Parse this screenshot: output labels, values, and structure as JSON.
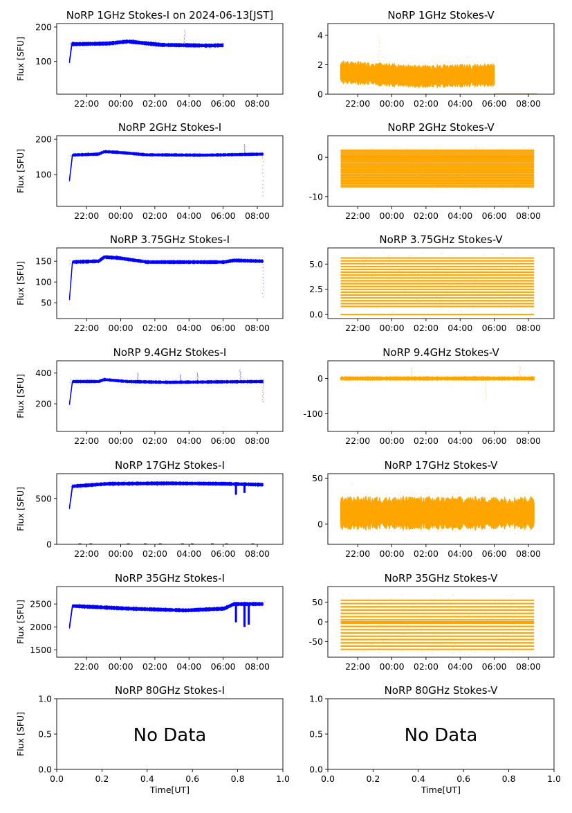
{
  "colors": {
    "stokes_i": "#0000ff",
    "stokes_v": "#ffa500",
    "axis": "#000000"
  },
  "chart_data": [
    {
      "type": "scatter",
      "title": "NoRP 1GHz Stokes-I on 2024-06-13[JST]",
      "ylabel": "Flux [SFU]",
      "xlim": [
        "20:15",
        "09:30"
      ],
      "ylim": [
        5,
        210
      ],
      "yticks": [
        100,
        200
      ],
      "series": [
        {
          "color": "stokes_i",
          "x_range": [
            "21:00",
            "06:00"
          ],
          "start": 100,
          "ramp_to": 150,
          "level_points": [
            [
              0,
              150
            ],
            [
              0.25,
              152
            ],
            [
              0.38,
              158
            ],
            [
              0.6,
              148
            ],
            [
              0.9,
              146
            ],
            [
              1,
              147
            ]
          ],
          "noise": 4,
          "spikes": [
            {
              "x": "03:45",
              "y": 190
            }
          ]
        }
      ]
    },
    {
      "type": "scatter",
      "title": "NoRP 1GHz Stokes-V",
      "ylabel": "",
      "xlim": [
        "20:15",
        "09:30"
      ],
      "ylim": [
        0,
        4.8
      ],
      "yticks": [
        0,
        2,
        4
      ],
      "series": [
        {
          "color": "stokes_v",
          "x_range": [
            "21:00",
            "06:00"
          ],
          "start": 1.5,
          "ramp_to": 1.5,
          "level_points": [
            [
              0,
              1.5
            ],
            [
              0.5,
              1.2
            ],
            [
              1,
              1.3
            ]
          ],
          "noise": 0.6,
          "extra_segment": {
            "x_range": [
              "06:00",
              "08:30"
            ],
            "y": 0.02
          },
          "spikes": [
            {
              "x": "23:15",
              "y": 3.9
            }
          ]
        }
      ]
    },
    {
      "type": "scatter",
      "title": "NoRP 2GHz Stokes-I",
      "ylabel": "Flux [SFU]",
      "xlim": [
        "20:15",
        "09:30"
      ],
      "ylim": [
        10,
        210
      ],
      "yticks": [
        100,
        200
      ],
      "series": [
        {
          "color": "stokes_i",
          "x_range": [
            "21:00",
            "08:20"
          ],
          "start": 85,
          "ramp_to": 155,
          "level_points": [
            [
              0,
              155
            ],
            [
              0.15,
              158
            ],
            [
              0.18,
              165
            ],
            [
              0.25,
              163
            ],
            [
              0.4,
              156
            ],
            [
              0.7,
              155
            ],
            [
              1,
              158
            ]
          ],
          "noise": 3,
          "spikes": [
            {
              "x": "07:15",
              "y": 185
            },
            {
              "x": "08:20",
              "y": 40
            }
          ]
        }
      ]
    },
    {
      "type": "scatter",
      "title": "NoRP 2GHz Stokes-V",
      "ylabel": "",
      "xlim": [
        "20:15",
        "09:30"
      ],
      "ylim": [
        -12.5,
        5.5
      ],
      "yticks": [
        0,
        -10
      ],
      "series": [
        {
          "color": "stokes_v",
          "x_range": [
            "21:00",
            "08:20"
          ],
          "bands": [
            1.8,
            -7.5
          ],
          "band_count": 24,
          "noise": 0.3
        }
      ]
    },
    {
      "type": "scatter",
      "title": "NoRP 3.75GHz Stokes-I",
      "ylabel": "Flux [SFU]",
      "xlim": [
        "20:15",
        "09:30"
      ],
      "ylim": [
        12,
        182
      ],
      "yticks": [
        50,
        100,
        150
      ],
      "series": [
        {
          "color": "stokes_i",
          "x_range": [
            "21:00",
            "08:20"
          ],
          "start": 60,
          "ramp_to": 148,
          "level_points": [
            [
              0,
              148
            ],
            [
              0.15,
              150
            ],
            [
              0.18,
              160
            ],
            [
              0.25,
              158
            ],
            [
              0.4,
              148
            ],
            [
              0.8,
              148
            ],
            [
              0.85,
              152
            ],
            [
              1,
              150
            ]
          ],
          "noise": 3,
          "spikes": [
            {
              "x": "08:20",
              "y": 65
            }
          ]
        }
      ]
    },
    {
      "type": "scatter",
      "title": "NoRP 3.75GHz Stokes-V",
      "ylabel": "",
      "xlim": [
        "20:15",
        "09:30"
      ],
      "ylim": [
        -0.4,
        6.6
      ],
      "yticks": [
        0.0,
        2.5,
        5.0
      ],
      "series": [
        {
          "color": "stokes_v",
          "x_range": [
            "21:00",
            "08:20"
          ],
          "bands": [
            5.6,
            0.8
          ],
          "band_count": 18,
          "noise": 0.1
        }
      ]
    },
    {
      "type": "scatter",
      "title": "NoRP 9.4GHz Stokes-I",
      "ylabel": "Flux [SFU]",
      "xlim": [
        "20:15",
        "09:30"
      ],
      "ylim": [
        20,
        480
      ],
      "yticks": [
        200,
        400
      ],
      "series": [
        {
          "color": "stokes_i",
          "x_range": [
            "21:00",
            "08:20"
          ],
          "start": 200,
          "ramp_to": 345,
          "level_points": [
            [
              0,
              345
            ],
            [
              0.15,
              345
            ],
            [
              0.18,
              358
            ],
            [
              0.3,
              345
            ],
            [
              0.5,
              340
            ],
            [
              1,
              345
            ]
          ],
          "noise": 7,
          "spikes": [
            {
              "x": "01:00",
              "y": 400
            },
            {
              "x": "03:30",
              "y": 390
            },
            {
              "x": "04:30",
              "y": 400
            },
            {
              "x": "07:00",
              "y": 420
            },
            {
              "x": "08:20",
              "y": 215
            }
          ]
        }
      ]
    },
    {
      "type": "scatter",
      "title": "NoRP 9.4GHz Stokes-V",
      "ylabel": "",
      "xlim": [
        "20:15",
        "09:30"
      ],
      "ylim": [
        -150,
        50
      ],
      "yticks": [
        0,
        -100
      ],
      "series": [
        {
          "color": "stokes_v",
          "x_range": [
            "21:00",
            "08:20"
          ],
          "start": 0,
          "ramp_to": 0,
          "level_points": [
            [
              0,
              0
            ],
            [
              1,
              0
            ]
          ],
          "noise": 4,
          "spikes": [
            {
              "x": "01:10",
              "y": 30
            },
            {
              "x": "05:30",
              "y": -60
            },
            {
              "x": "07:30",
              "y": 35
            }
          ]
        }
      ]
    },
    {
      "type": "scatter",
      "title": "NoRP 17GHz Stokes-I",
      "ylabel": "Flux [SFU]",
      "xlim": [
        "20:15",
        "09:30"
      ],
      "ylim": [
        0,
        770
      ],
      "yticks": [
        0,
        500
      ],
      "series": [
        {
          "color": "stokes_i",
          "x_range": [
            "21:00",
            "08:20"
          ],
          "start": 400,
          "ramp_to": 630,
          "level_points": [
            [
              0,
              630
            ],
            [
              0.2,
              660
            ],
            [
              0.5,
              665
            ],
            [
              0.8,
              660
            ],
            [
              1,
              650
            ]
          ],
          "noise": 14,
          "dips": [
            {
              "x": "06:45",
              "y": 540
            },
            {
              "x": "07:15",
              "y": 560
            }
          ],
          "baseline_y": 2
        }
      ]
    },
    {
      "type": "scatter",
      "title": "NoRP 17GHz Stokes-V",
      "ylabel": "",
      "xlim": [
        "20:15",
        "09:30"
      ],
      "ylim": [
        -22,
        55
      ],
      "yticks": [
        0,
        50
      ],
      "series": [
        {
          "color": "stokes_v",
          "x_range": [
            "21:00",
            "08:20"
          ],
          "start": 12,
          "ramp_to": 12,
          "level_points": [
            [
              0,
              12
            ],
            [
              1,
              12
            ]
          ],
          "noise": 14
        }
      ]
    },
    {
      "type": "scatter",
      "title": "NoRP 35GHz Stokes-I",
      "ylabel": "Flux [SFU]",
      "xlim": [
        "20:15",
        "09:30"
      ],
      "ylim": [
        1340,
        2880
      ],
      "yticks": [
        1500,
        2000,
        2500
      ],
      "series": [
        {
          "color": "stokes_i",
          "x_range": [
            "21:00",
            "08:20"
          ],
          "start": 2000,
          "ramp_to": 2450,
          "level_points": [
            [
              0,
              2460
            ],
            [
              0.3,
              2400
            ],
            [
              0.6,
              2360
            ],
            [
              0.8,
              2400
            ],
            [
              0.85,
              2500
            ],
            [
              1,
              2500
            ]
          ],
          "noise": 30,
          "dips": [
            {
              "x": "06:45",
              "y": 2100
            },
            {
              "x": "07:15",
              "y": 2000
            },
            {
              "x": "07:30",
              "y": 2050
            }
          ]
        }
      ]
    },
    {
      "type": "scatter",
      "title": "NoRP 35GHz Stokes-V",
      "ylabel": "",
      "xlim": [
        "20:15",
        "09:30"
      ],
      "ylim": [
        -90,
        90
      ],
      "yticks": [
        -50,
        0,
        50
      ],
      "series": [
        {
          "color": "stokes_v",
          "x_range": [
            "21:00",
            "08:20"
          ],
          "bands": [
            55,
            -70
          ],
          "band_count": 16,
          "noise": 1
        }
      ]
    },
    {
      "type": "scatter",
      "title": "NoRP 80GHz Stokes-I",
      "ylabel": "Flux [SFU]",
      "xlabel": "Time[UT]",
      "xlim": [
        0,
        1
      ],
      "ylim": [
        0,
        1
      ],
      "yticks": [
        0.0,
        0.5,
        1.0
      ],
      "xticks": [
        0.0,
        0.2,
        0.4,
        0.6,
        0.8,
        1.0
      ],
      "annotation": "No Data",
      "series": []
    },
    {
      "type": "scatter",
      "title": "NoRP 80GHz Stokes-V",
      "ylabel": "",
      "xlabel": "Time[UT]",
      "xlim": [
        0,
        1
      ],
      "ylim": [
        0,
        1
      ],
      "yticks": [
        0.0,
        0.5,
        1.0
      ],
      "xticks": [
        0.0,
        0.2,
        0.4,
        0.6,
        0.8,
        1.0
      ],
      "annotation": "No Data",
      "series": []
    }
  ],
  "time_ticks": [
    "22:00",
    "00:00",
    "02:00",
    "04:00",
    "06:00",
    "08:00"
  ]
}
